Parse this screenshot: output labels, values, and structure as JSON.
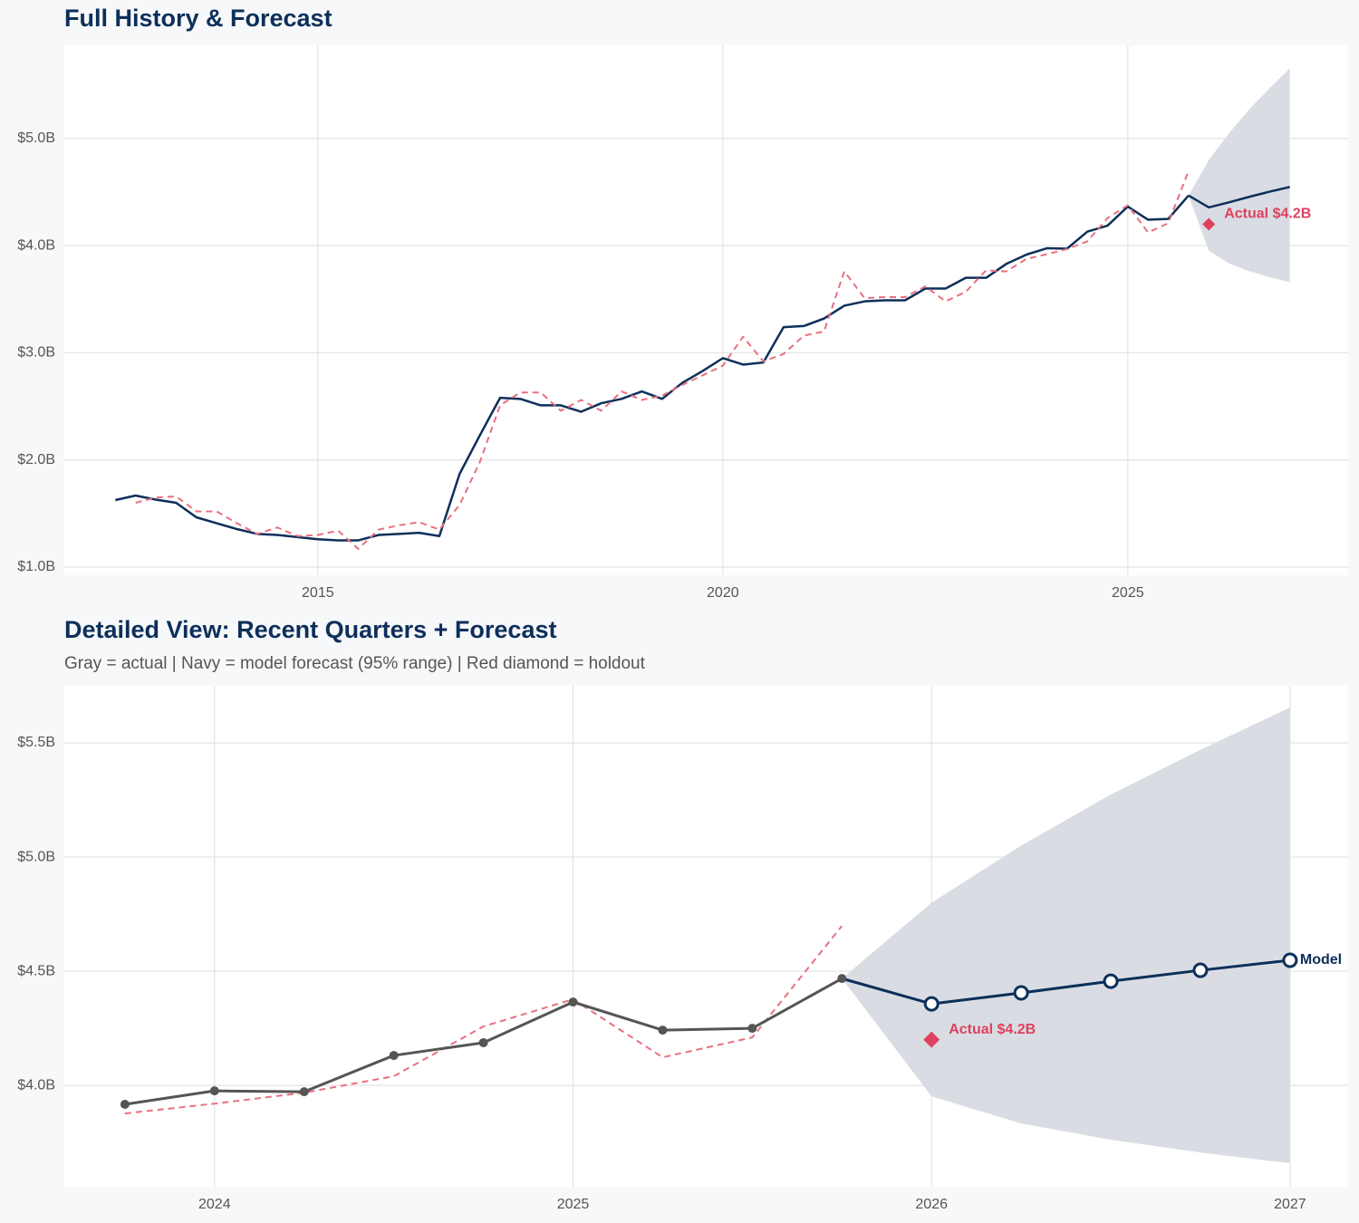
{
  "chart_data": [
    {
      "type": "line",
      "title": "Full History & Forecast",
      "xlim": [
        2011.87,
        2027.72
      ],
      "ylim": [
        0.924,
        5.87
      ],
      "xticks": [
        2015,
        2020,
        2025
      ],
      "yticks": [
        {
          "value": 1,
          "label": "$1.0B"
        },
        {
          "value": 2,
          "label": "$2.0B"
        },
        {
          "value": 3,
          "label": "$3.0B"
        },
        {
          "value": 4,
          "label": "$4.0B"
        },
        {
          "value": 5,
          "label": "$5.0B"
        }
      ],
      "grid": true,
      "x": [
        2012.5,
        2012.75,
        2013,
        2013.25,
        2013.5,
        2013.75,
        2014,
        2014.25,
        2014.5,
        2014.75,
        2015,
        2015.25,
        2015.5,
        2015.75,
        2016,
        2016.25,
        2016.5,
        2016.75,
        2017,
        2017.25,
        2017.5,
        2017.75,
        2018,
        2018.25,
        2018.5,
        2018.75,
        2019,
        2019.25,
        2019.5,
        2019.75,
        2020,
        2020.25,
        2020.5,
        2020.75,
        2021,
        2021.25,
        2021.5,
        2021.75,
        2022,
        2022.25,
        2022.5,
        2022.75,
        2023,
        2023.25,
        2023.5,
        2023.75,
        2024,
        2024.25,
        2024.5,
        2024.75,
        2025,
        2025.25,
        2025.5,
        2025.75
      ],
      "series": [
        {
          "color": "#0d2f5a",
          "values": [
            1.626,
            1.668,
            1.63,
            1.6,
            1.465,
            1.41,
            1.355,
            1.31,
            1.3,
            1.28,
            1.26,
            1.25,
            1.25,
            1.3,
            1.31,
            1.32,
            1.29,
            1.87,
            2.23,
            2.58,
            2.57,
            2.51,
            2.51,
            2.45,
            2.53,
            2.57,
            2.64,
            2.57,
            2.72,
            2.83,
            2.95,
            2.89,
            2.91,
            3.24,
            3.25,
            3.32,
            3.44,
            3.48,
            3.49,
            3.49,
            3.6,
            3.6,
            3.7,
            3.7,
            3.83,
            3.917,
            3.976,
            3.972,
            4.131,
            4.187,
            4.365,
            4.242,
            4.25,
            4.468
          ]
        },
        {
          "color": "#e8707f",
          "dash": true,
          "values": [
            null,
            1.6,
            1.65,
            1.66,
            1.52,
            1.52,
            1.41,
            1.31,
            1.37,
            1.29,
            1.3,
            1.34,
            1.17,
            1.35,
            1.39,
            1.42,
            1.35,
            1.58,
            1.98,
            2.51,
            2.63,
            2.63,
            2.46,
            2.56,
            2.46,
            2.64,
            2.56,
            2.6,
            2.7,
            2.79,
            2.88,
            3.15,
            2.92,
            2.99,
            3.16,
            3.2,
            3.76,
            3.51,
            3.52,
            3.52,
            3.62,
            3.48,
            3.57,
            3.77,
            3.76,
            3.877,
            3.92,
            3.968,
            4.04,
            4.258,
            4.377,
            4.123,
            4.21,
            4.698
          ]
        }
      ],
      "forecast": {
        "color": "#0d2f5a",
        "band_color": "#d9dde3",
        "x": [
          2025.75,
          2026,
          2026.25,
          2026.5,
          2026.75,
          2027
        ],
        "values": [
          4.468,
          4.357,
          4.405,
          4.456,
          4.504,
          4.548
        ],
        "lower": [
          4.468,
          3.952,
          3.833,
          3.762,
          3.706,
          3.659
        ],
        "upper": [
          4.468,
          4.8,
          5.05,
          5.274,
          5.47,
          5.655
        ]
      },
      "holdout": {
        "x": 2026,
        "value": 4.2,
        "label": "Actual $4.2B",
        "color": "#e0405f"
      }
    },
    {
      "type": "line",
      "title": "Detailed View: Recent Quarters + Forecast",
      "subtitle": "Gray = actual  |  Navy = model forecast (95% range)  |  Red diamond = holdout",
      "xlim": [
        2023.581,
        2027.162
      ],
      "ylim": [
        3.556,
        5.75
      ],
      "xticks": [
        2024,
        2025,
        2026,
        2027
      ],
      "yticks": [
        {
          "value": 4,
          "label": "$4.0B"
        },
        {
          "value": 4.5,
          "label": "$4.5B"
        },
        {
          "value": 5,
          "label": "$5.0B"
        },
        {
          "value": 5.5,
          "label": "$5.5B"
        }
      ],
      "grid": true,
      "x": [
        2023.75,
        2024,
        2024.25,
        2024.5,
        2024.75,
        2025,
        2025.25,
        2025.5,
        2025.75
      ],
      "series": [
        {
          "color": "#e8707f",
          "dash": true,
          "values": [
            3.877,
            3.92,
            3.968,
            4.04,
            4.258,
            4.377,
            4.123,
            4.21,
            4.698
          ]
        },
        {
          "color": "#555555",
          "markers": true,
          "values": [
            3.917,
            3.976,
            3.972,
            4.131,
            4.187,
            4.365,
            4.242,
            4.25,
            4.468
          ]
        }
      ],
      "forecast": {
        "color": "#0d2f5a",
        "band_color": "#d9dde3",
        "markers": true,
        "label": "Model",
        "x": [
          2025.75,
          2026,
          2026.25,
          2026.5,
          2026.75,
          2027
        ],
        "values": [
          4.468,
          4.357,
          4.405,
          4.456,
          4.504,
          4.548
        ],
        "lower": [
          4.468,
          3.952,
          3.833,
          3.762,
          3.706,
          3.659
        ],
        "upper": [
          4.468,
          4.8,
          5.05,
          5.274,
          5.47,
          5.655
        ]
      },
      "holdout": {
        "x": 2026,
        "value": 4.2,
        "label": "Actual $4.2B",
        "color": "#e0405f"
      }
    }
  ]
}
